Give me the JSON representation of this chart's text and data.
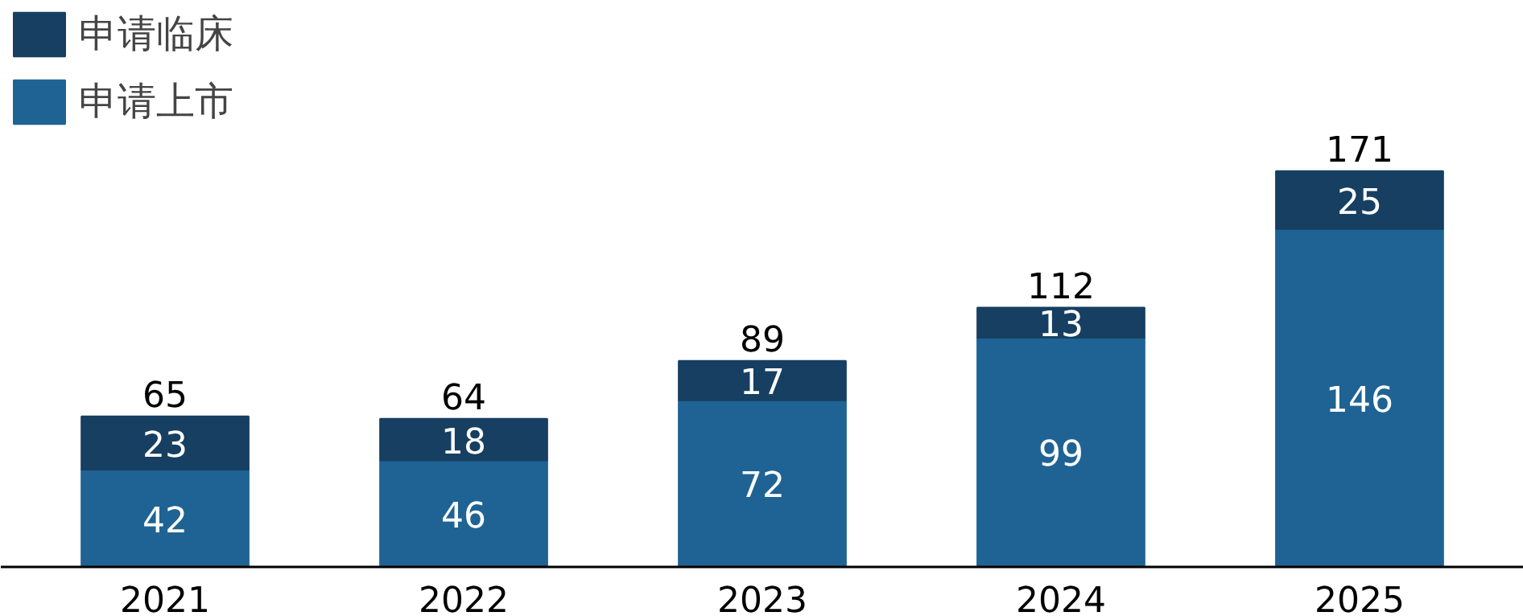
{
  "chart_data": {
    "type": "bar",
    "stacked": true,
    "categories": [
      "2021",
      "2022",
      "2023",
      "2024",
      "2025"
    ],
    "series": [
      {
        "name": "申请上市",
        "color": "#1f6394",
        "values": [
          42,
          46,
          72,
          99,
          146
        ]
      },
      {
        "name": "申请临床",
        "color": "#163f62",
        "values": [
          23,
          18,
          17,
          13,
          25
        ]
      }
    ],
    "data_labels": true,
    "totals": [
      "65",
      "64",
      "89",
      "112",
      "171"
    ],
    "legend": "top left",
    "grid": false
  }
}
